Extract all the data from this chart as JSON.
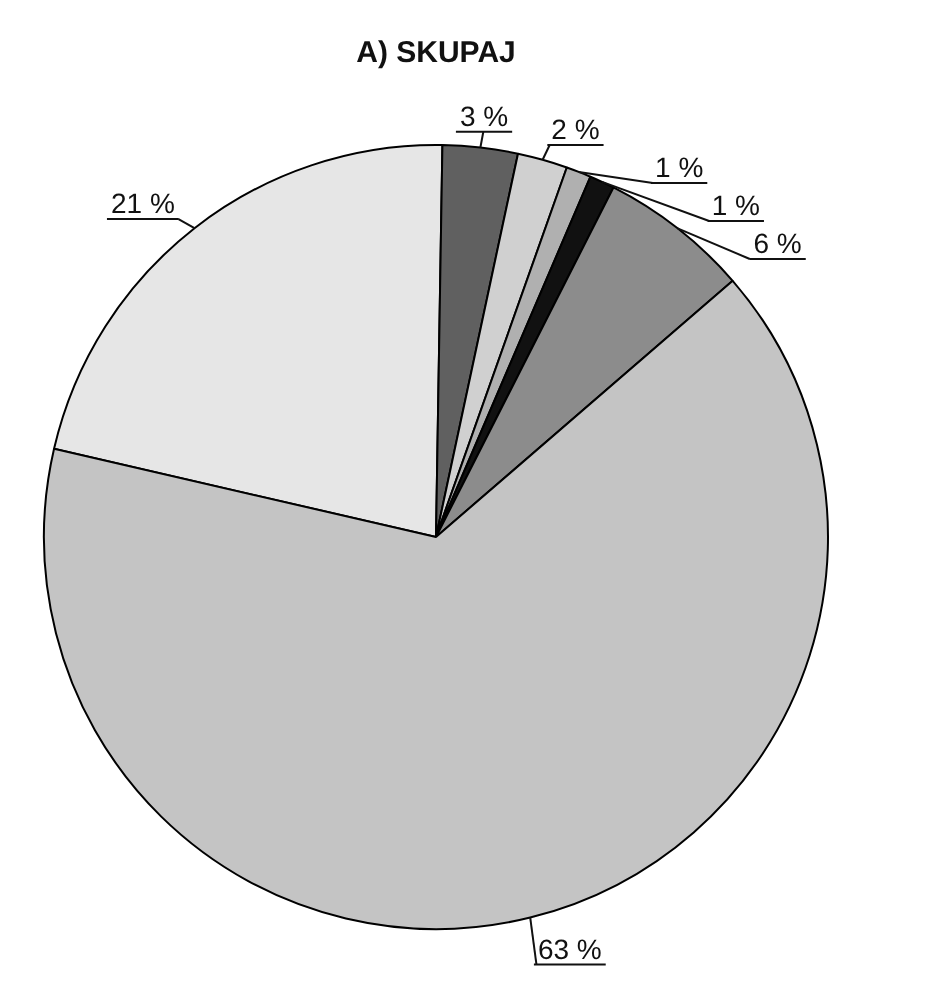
{
  "chart_data": {
    "type": "pie",
    "title": "A) SKUPAJ",
    "categories": [
      null,
      null,
      null,
      null,
      null,
      null,
      null
    ],
    "values": [
      21,
      3,
      2,
      1,
      1,
      6,
      63
    ],
    "colors": [
      "#e6e6e6",
      "#606060",
      "#d0d0d0",
      "#b0b0b0",
      "#111111",
      "#8c8c8c",
      "#c4c4c4"
    ],
    "value_labels": [
      "21 %",
      "3 %",
      "2 %",
      "1 %",
      "1 %",
      "6 %",
      "63 %"
    ],
    "legend": false
  }
}
